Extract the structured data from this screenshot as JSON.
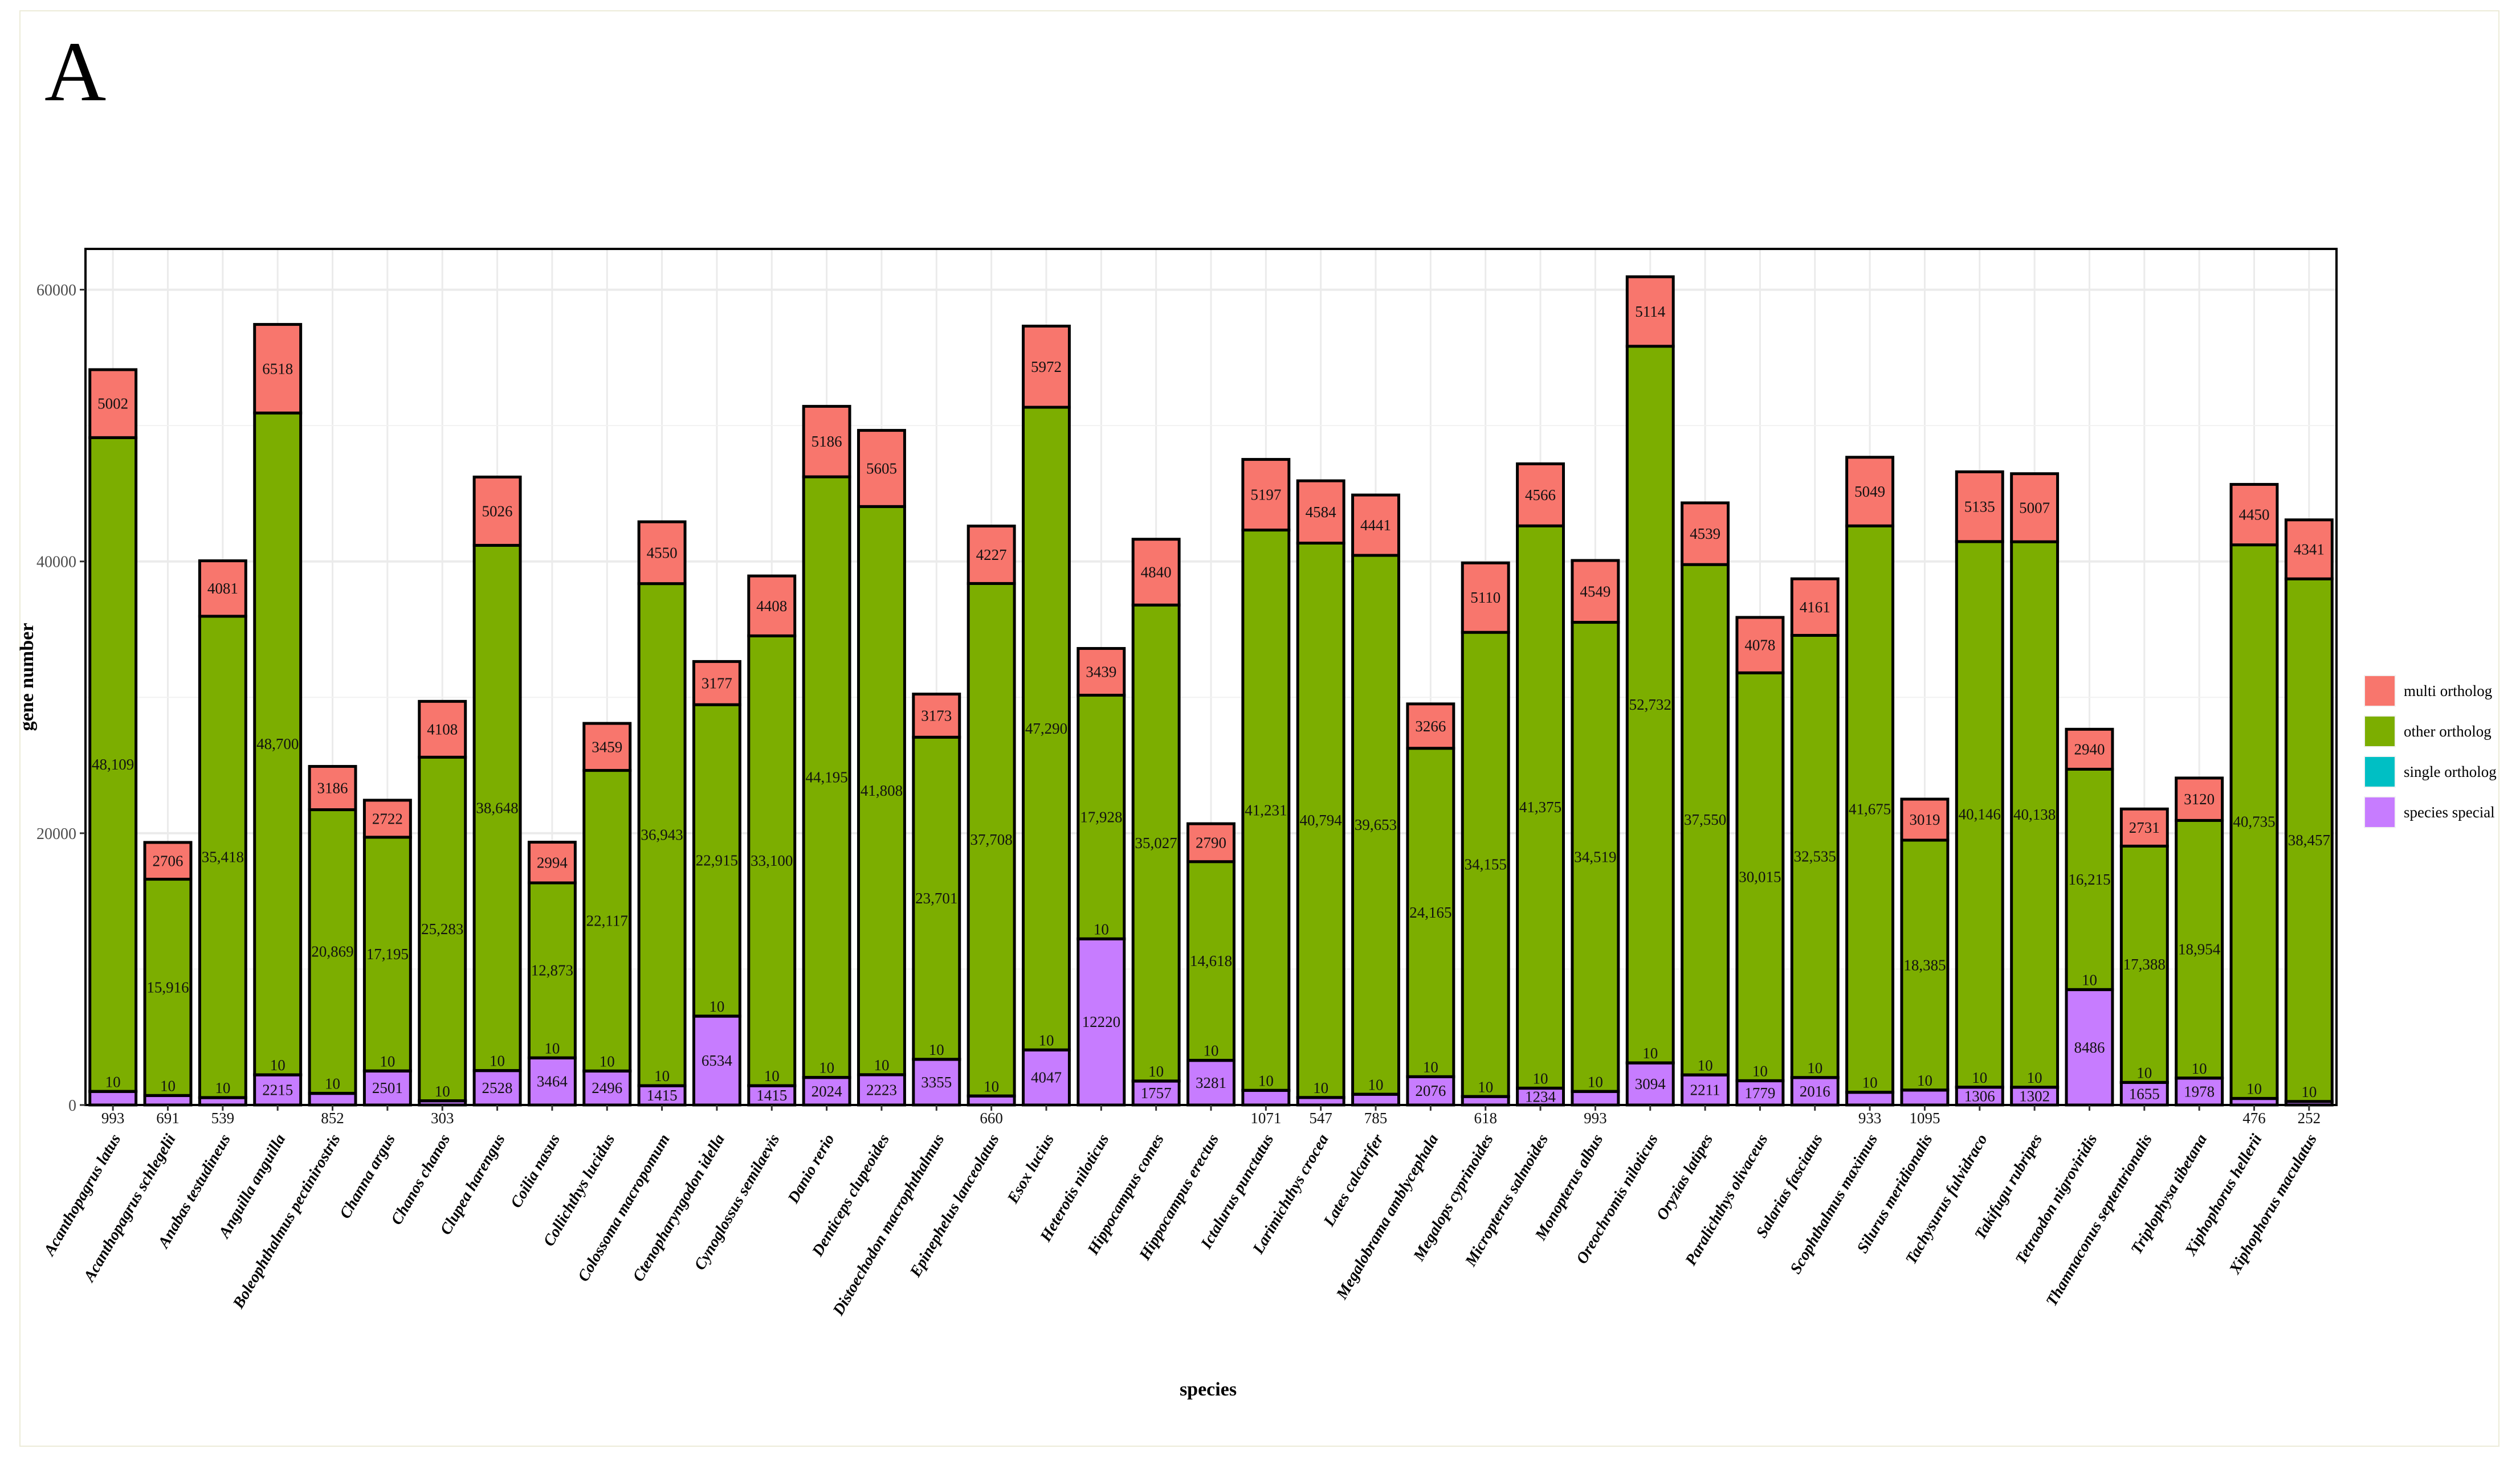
{
  "panel_label": "A",
  "chart_data": {
    "type": "bar",
    "stacked": true,
    "xlabel": "species",
    "ylabel": "gene number",
    "ylim": [
      0,
      63000
    ],
    "yticks": [
      0,
      20000,
      40000,
      60000
    ],
    "ytick_labels": [
      "0",
      "20000",
      "40000",
      "60000"
    ],
    "legend_position": "right",
    "legend": [
      {
        "name": "multi ortholog",
        "color": "#F8766D"
      },
      {
        "name": "other ortholog",
        "color": "#7CAE00"
      },
      {
        "name": "single ortholog",
        "color": "#00BFC4"
      },
      {
        "name": "species special",
        "color": "#C77CFF"
      }
    ],
    "categories": [
      "Acanthopagrus latus",
      "Acanthopagrus schlegelii",
      "Anabas testudineus",
      "Anguilla anguilla",
      "Boleophthalmus pectinirostris",
      "Channa argus",
      "Chanos chanos",
      "Clupea harengus",
      "Coilia nasus",
      "Collichthys lucidus",
      "Colossoma macropomum",
      "Ctenopharyngodon idella",
      "Cynoglossus semilaevis",
      "Danio rerio",
      "Denticeps clupeoides",
      "Distoechodon macrophthalmus",
      "Epinephelus lanceolatus",
      "Esox lucius",
      "Heterotis niloticus",
      "Hippocampus comes",
      "Hippocampus erectus",
      "Ictalurus punctatus",
      "Larimichthys crocea",
      "Lates calcarifer",
      "Megalobrama amblycephala",
      "Megalops cyprinoides",
      "Micropterus salmoides",
      "Monopterus albus",
      "Oreochromis niloticus",
      "Oryzias latipes",
      "Paralichthys olivaceus",
      "Salarias fasciatus",
      "Scophthalmus maximus",
      "Silurus meridionalis",
      "Tachysurus fulvidraco",
      "Takifugu rubripes",
      "Tetraodon nigroviridis",
      "Thamnaconus septentrionalis",
      "Triplophysa tibetana",
      "Xiphophorus hellerii",
      "Xiphophorus maculatus"
    ],
    "series": [
      {
        "name": "species special",
        "values": [
          993,
          691,
          539,
          2215,
          852,
          2501,
          303,
          2528,
          3464,
          2496,
          1415,
          6534,
          1415,
          2024,
          2223,
          3355,
          660,
          4047,
          12220,
          1757,
          3281,
          1071,
          547,
          785,
          2076,
          618,
          1234,
          993,
          3094,
          2211,
          1779,
          2016,
          933,
          1095,
          1306,
          1302,
          8486,
          1655,
          1978,
          476,
          252
        ]
      },
      {
        "name": "single ortholog",
        "values": [
          10,
          10,
          10,
          10,
          10,
          10,
          10,
          10,
          10,
          10,
          10,
          10,
          10,
          10,
          10,
          10,
          10,
          10,
          10,
          10,
          10,
          10,
          10,
          10,
          10,
          10,
          10,
          10,
          10,
          10,
          10,
          10,
          10,
          10,
          10,
          10,
          10,
          10,
          10,
          10,
          10
        ]
      },
      {
        "name": "other ortholog",
        "values": [
          48109,
          15916,
          35418,
          48700,
          20869,
          17195,
          25283,
          38648,
          12873,
          22117,
          36943,
          22915,
          33100,
          44195,
          41808,
          23701,
          37708,
          47290,
          17928,
          35027,
          14618,
          41231,
          40794,
          39653,
          24165,
          34155,
          41375,
          34519,
          52732,
          37550,
          30015,
          32535,
          41675,
          18385,
          40146,
          40138,
          16215,
          17388,
          18954,
          40735,
          38457
        ]
      },
      {
        "name": "multi ortholog",
        "values": [
          5002,
          2706,
          4081,
          6518,
          3186,
          2722,
          4108,
          5026,
          2994,
          3459,
          4550,
          3177,
          4408,
          5186,
          5605,
          3173,
          4227,
          5972,
          3439,
          4840,
          2790,
          5197,
          4584,
          4441,
          3266,
          5110,
          4566,
          4549,
          5114,
          4539,
          4078,
          4161,
          5049,
          3019,
          5135,
          5007,
          2940,
          2731,
          3120,
          4450,
          4341
        ]
      }
    ],
    "value_labels": {
      "species special": [
        "993",
        "691",
        "539",
        "2215",
        "852",
        "2501",
        "303",
        "2528",
        "3464",
        "2496",
        "1415",
        "6534",
        "1415",
        "2024",
        "2223",
        "3355",
        "660",
        "4047",
        "12220",
        "1757",
        "3281",
        "1071",
        "547",
        "785",
        "2076",
        "618",
        "1234",
        "993",
        "3094",
        "2211",
        "1779",
        "2016",
        "933",
        "1095",
        "1306",
        "1302",
        "8486",
        "1655",
        "1978",
        "476",
        "252"
      ],
      "single ortholog": [
        "10",
        "10",
        "10",
        "10",
        "10",
        "10",
        "10",
        "10",
        "10",
        "10",
        "10",
        "10",
        "10",
        "10",
        "10",
        "10",
        "10",
        "10",
        "10",
        "10",
        "10",
        "10",
        "10",
        "10",
        "10",
        "10",
        "10",
        "10",
        "10",
        "10",
        "10",
        "10",
        "10",
        "10",
        "10",
        "10",
        "10",
        "10",
        "10",
        "10",
        "10"
      ],
      "other ortholog": [
        "48,109",
        "15,916",
        "35,418",
        "48,700",
        "20,869",
        "17,195",
        "25,283",
        "38,648",
        "12,873",
        "22,117",
        "36,943",
        "22,915",
        "33,100",
        "44,195",
        "41,808",
        "23,701",
        "37,708",
        "47,290",
        "17,928",
        "35,027",
        "14,618",
        "41,231",
        "40,794",
        "39,653",
        "24,165",
        "34,155",
        "41,375",
        "34,519",
        "52,732",
        "37,550",
        "30,015",
        "32,535",
        "41,675",
        "18,385",
        "40,146",
        "40,138",
        "16,215",
        "17,388",
        "18,954",
        "40,735",
        "38,457"
      ],
      "multi ortholog": [
        "5002",
        "2706",
        "4081",
        "6518",
        "3186",
        "2722",
        "4108",
        "5026",
        "2994",
        "3459",
        "4550",
        "3177",
        "4408",
        "5186",
        "5605",
        "3173",
        "4227",
        "5972",
        "3439",
        "4840",
        "2790",
        "5197",
        "4584",
        "4441",
        "3266",
        "5110",
        "4566",
        "4549",
        "5114",
        "4539",
        "4078",
        "4161",
        "5049",
        "3019",
        "5135",
        "5007",
        "2940",
        "2731",
        "3120",
        "4450",
        "4341"
      ]
    }
  }
}
